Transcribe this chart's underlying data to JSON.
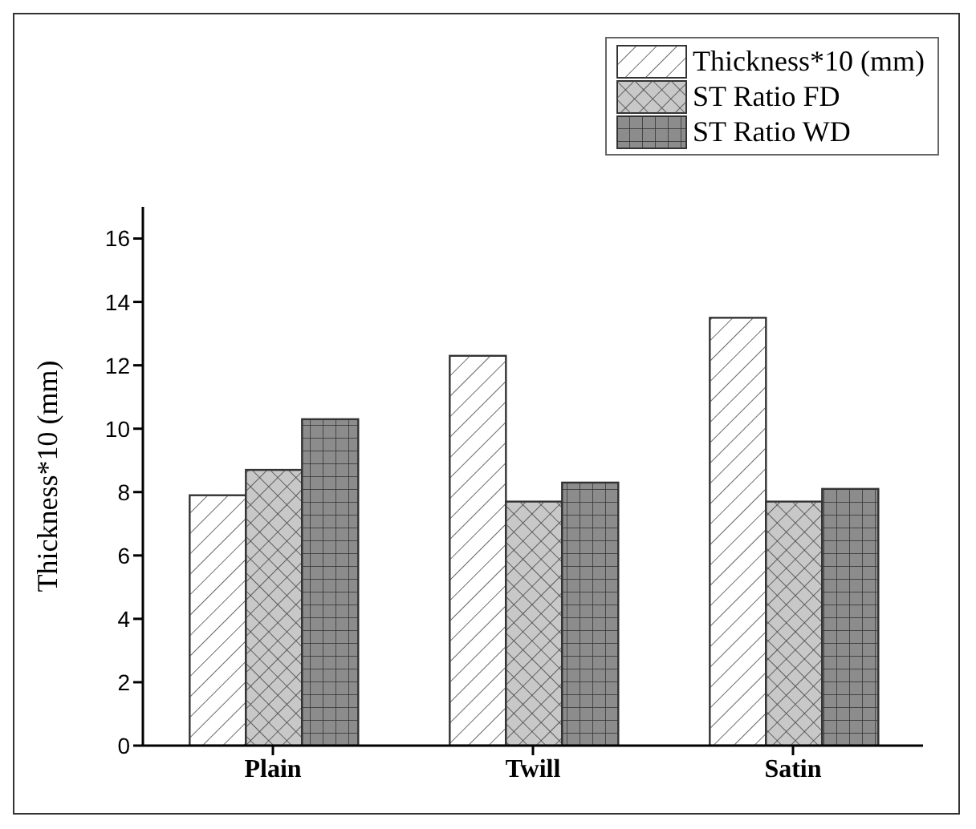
{
  "chart_data": {
    "type": "bar",
    "ylabel": "Thickness*10 (mm)",
    "categories": [
      "Plain",
      "Twill",
      "Satin"
    ],
    "series": [
      {
        "name": "Thickness*10 (mm)",
        "color": "#ffffff",
        "values": [
          7.9,
          12.3,
          13.5
        ]
      },
      {
        "name": "ST Ratio FD",
        "color": "#c8c8c8",
        "values": [
          8.7,
          7.7,
          7.7
        ]
      },
      {
        "name": "ST Ratio WD",
        "color": "#8c8c8c",
        "values": [
          10.3,
          8.3,
          8.1
        ]
      }
    ],
    "ylim": [
      0,
      17
    ],
    "yticks": [
      0,
      2,
      4,
      6,
      8,
      10,
      12,
      14,
      16
    ],
    "grid": false,
    "legend": "top right"
  }
}
